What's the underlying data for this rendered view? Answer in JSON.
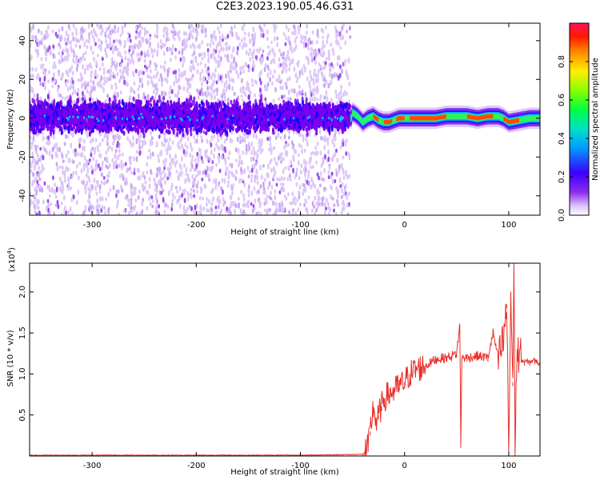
{
  "title": "C2E3.2023.190.05.46.G31",
  "chart_data": [
    {
      "type": "heatmap",
      "xlabel": "Height of straight line (km)",
      "ylabel": "Frequency (Hz)",
      "xlim": [
        -360,
        130
      ],
      "ylim": [
        -50,
        49
      ],
      "xticks": [
        -300,
        -200,
        -100,
        0,
        100
      ],
      "xtick_labels": [
        "-300",
        "-200",
        "-100",
        "0",
        "100"
      ],
      "yticks": [
        -40,
        -20,
        0,
        20,
        40
      ],
      "ytick_labels": [
        "-40",
        "-20",
        "0",
        "20",
        "40"
      ],
      "colorbar": {
        "label": "Normalized spectral amplitude",
        "range": [
          0,
          1
        ],
        "ticks": [
          0.0,
          0.2,
          0.4,
          0.6,
          0.8
        ],
        "tick_labels": [
          "0.0",
          "0.2",
          "0.4",
          "0.6",
          "0.8"
        ],
        "colormap": [
          "#ffffff",
          "#c8a6f5",
          "#7a00ee",
          "#1e00ff",
          "#00c8ff",
          "#00ff66",
          "#a8ff00",
          "#ffff00",
          "#ff8000",
          "#ff0000",
          "#ff1060"
        ]
      },
      "regions": [
        {
          "x": [
            -360,
            -52
          ],
          "description": "noise",
          "dense_band_hz": [
            -10,
            12
          ],
          "sparse_band_hz": [
            -50,
            48
          ]
        },
        {
          "x": [
            -52,
            130
          ],
          "description": "signal",
          "band_hz": [
            -3,
            3
          ]
        }
      ],
      "signal_trace": {
        "x": [
          -50,
          -45,
          -40,
          -35,
          -30,
          -25,
          -20,
          -15,
          -10,
          -5,
          0,
          10,
          20,
          30,
          40,
          50,
          60,
          70,
          80,
          90,
          95,
          100,
          110,
          120,
          130
        ],
        "y": [
          3,
          1,
          -2,
          0,
          1,
          -1,
          -2,
          -2,
          -1,
          0,
          0,
          0,
          0,
          0,
          1,
          1,
          1,
          0,
          1,
          1,
          0,
          -2,
          -1,
          0,
          0
        ]
      }
    },
    {
      "type": "line",
      "xlabel": "Height of straight line (km)",
      "ylabel": "SNR (10 * v/v)",
      "y_multiplier_label": "(x10",
      "y_multiplier_exponent": "4",
      "xlim": [
        -360,
        130
      ],
      "ylim": [
        0,
        2.35
      ],
      "xticks": [
        -300,
        -200,
        -100,
        0,
        100
      ],
      "xtick_labels": [
        "-300",
        "-200",
        "-100",
        "0",
        "100"
      ],
      "yticks": [
        0.5,
        1.0,
        1.5,
        2.0
      ],
      "ytick_labels": [
        "0.5",
        "1.0",
        "1.5",
        "2.0"
      ],
      "color": "#e8302a",
      "series": [
        {
          "x": [
            -360,
            -300,
            -200,
            -100,
            -40,
            -35,
            -33,
            -30,
            -27,
            -25,
            -22,
            -20,
            -15,
            -10,
            -5,
            0,
            5,
            10,
            20,
            30,
            40,
            45,
            50,
            53,
            54,
            55,
            60,
            70,
            80,
            85,
            90,
            95,
            98,
            100,
            102,
            104,
            105,
            106,
            108,
            110,
            115,
            120,
            125,
            130
          ],
          "y": [
            0.01,
            0.01,
            0.01,
            0.01,
            0.02,
            0.1,
            0.3,
            0.6,
            0.4,
            0.5,
            0.6,
            0.7,
            0.75,
            0.8,
            0.85,
            0.9,
            1.0,
            1.05,
            1.1,
            1.18,
            1.2,
            1.22,
            1.25,
            1.6,
            0.15,
            1.2,
            1.2,
            1.22,
            1.2,
            1.5,
            1.18,
            1.4,
            1.85,
            0.1,
            1.95,
            0.9,
            2.35,
            0.2,
            1.3,
            1.18,
            1.15,
            1.15,
            1.17,
            1.12
          ]
        }
      ]
    }
  ]
}
